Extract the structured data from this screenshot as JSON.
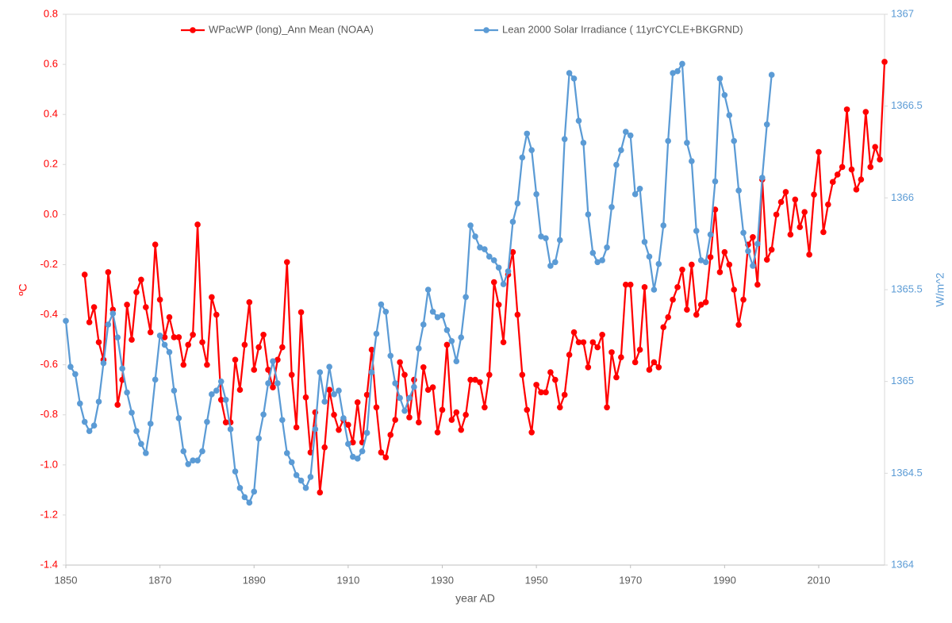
{
  "chart_data": {
    "type": "line",
    "xlabel": "year AD",
    "ylabel": "ºC",
    "y2label": "W/m^2",
    "legend": "top",
    "grid": false,
    "markers": true,
    "xlim": [
      1850,
      2024
    ],
    "xticks": [
      1850,
      1870,
      1890,
      1910,
      1930,
      1950,
      1970,
      1990,
      2010
    ],
    "ylim": [
      -1.4,
      0.8
    ],
    "yticks": [
      -1.4,
      -1.2,
      {
        "value": -1,
        "label": "-1.0"
      },
      -0.8,
      -0.6,
      -0.4,
      -0.2,
      {
        "value": 0,
        "label": "0.0"
      },
      0.2,
      0.4,
      0.6,
      0.8
    ],
    "y2lim": [
      1364,
      1367
    ],
    "y2ticks": [
      1364,
      1364.5,
      1365,
      1365.5,
      1366,
      1366.5,
      1367
    ],
    "x": [
      1850,
      1851,
      1852,
      1853,
      1854,
      1855,
      1856,
      1857,
      1858,
      1859,
      1860,
      1861,
      1862,
      1863,
      1864,
      1865,
      1866,
      1867,
      1868,
      1869,
      1870,
      1871,
      1872,
      1873,
      1874,
      1875,
      1876,
      1877,
      1878,
      1879,
      1880,
      1881,
      1882,
      1883,
      1884,
      1885,
      1886,
      1887,
      1888,
      1889,
      1890,
      1891,
      1892,
      1893,
      1894,
      1895,
      1896,
      1897,
      1898,
      1899,
      1900,
      1901,
      1902,
      1903,
      1904,
      1905,
      1906,
      1907,
      1908,
      1909,
      1910,
      1911,
      1912,
      1913,
      1914,
      1915,
      1916,
      1917,
      1918,
      1919,
      1920,
      1921,
      1922,
      1923,
      1924,
      1925,
      1926,
      1927,
      1928,
      1929,
      1930,
      1931,
      1932,
      1933,
      1934,
      1935,
      1936,
      1937,
      1938,
      1939,
      1940,
      1941,
      1942,
      1943,
      1944,
      1945,
      1946,
      1947,
      1948,
      1949,
      1950,
      1951,
      1952,
      1953,
      1954,
      1955,
      1956,
      1957,
      1958,
      1959,
      1960,
      1961,
      1962,
      1963,
      1964,
      1965,
      1966,
      1967,
      1968,
      1969,
      1970,
      1971,
      1972,
      1973,
      1974,
      1975,
      1976,
      1977,
      1978,
      1979,
      1980,
      1981,
      1982,
      1983,
      1984,
      1985,
      1986,
      1987,
      1988,
      1989,
      1990,
      1991,
      1992,
      1993,
      1994,
      1995,
      1996,
      1997,
      1998,
      1999,
      2000,
      2001,
      2002,
      2003,
      2004,
      2005,
      2006,
      2007,
      2008,
      2009,
      2010,
      2011,
      2012,
      2013,
      2014,
      2015,
      2016,
      2017,
      2018,
      2019,
      2020,
      2021,
      2022,
      2023,
      2024
    ],
    "series": [
      {
        "name": "WPacWP (long)_Ann Mean (NOAA)",
        "color": "#ff0000",
        "axis": "y",
        "values": [
          null,
          null,
          null,
          null,
          -0.24,
          -0.43,
          -0.37,
          -0.51,
          -0.58,
          -0.23,
          -0.38,
          -0.76,
          -0.66,
          -0.36,
          -0.5,
          -0.31,
          -0.26,
          -0.37,
          -0.47,
          -0.12,
          -0.34,
          -0.49,
          -0.41,
          -0.49,
          -0.49,
          -0.6,
          -0.52,
          -0.48,
          -0.04,
          -0.51,
          -0.6,
          -0.33,
          -0.4,
          -0.74,
          -0.83,
          -0.83,
          -0.58,
          -0.7,
          -0.52,
          -0.35,
          -0.62,
          -0.53,
          -0.48,
          -0.62,
          -0.69,
          -0.58,
          -0.53,
          -0.19,
          -0.64,
          -0.85,
          -0.39,
          -0.73,
          -0.95,
          -0.79,
          -1.11,
          -0.93,
          -0.7,
          -0.8,
          -0.86,
          -0.82,
          -0.84,
          -0.91,
          -0.75,
          -0.91,
          -0.72,
          -0.54,
          -0.77,
          -0.95,
          -0.97,
          -0.88,
          -0.82,
          -0.59,
          -0.64,
          -0.81,
          -0.66,
          -0.83,
          -0.61,
          -0.7,
          -0.69,
          -0.87,
          -0.78,
          -0.52,
          -0.82,
          -0.79,
          -0.86,
          -0.8,
          -0.66,
          -0.66,
          -0.67,
          -0.77,
          -0.64,
          -0.27,
          -0.36,
          -0.51,
          -0.24,
          -0.15,
          -0.4,
          -0.64,
          -0.78,
          -0.87,
          -0.68,
          -0.71,
          -0.71,
          -0.63,
          -0.66,
          -0.77,
          -0.72,
          -0.56,
          -0.47,
          -0.51,
          -0.51,
          -0.61,
          -0.51,
          -0.53,
          -0.48,
          -0.77,
          -0.55,
          -0.65,
          -0.57,
          -0.28,
          -0.28,
          -0.59,
          -0.54,
          -0.29,
          -0.62,
          -0.59,
          -0.61,
          -0.45,
          -0.41,
          -0.34,
          -0.29,
          -0.22,
          -0.38,
          -0.2,
          -0.4,
          -0.36,
          -0.35,
          -0.17,
          0.02,
          -0.23,
          -0.15,
          -0.2,
          -0.3,
          -0.44,
          -0.34,
          -0.12,
          -0.09,
          -0.28,
          0.14,
          -0.18,
          -0.14,
          0.0,
          0.05,
          0.09,
          -0.08,
          0.06,
          -0.05,
          0.01,
          -0.16,
          0.08,
          0.25,
          -0.07,
          0.04,
          0.13,
          0.16,
          0.19,
          0.42,
          0.18,
          0.1,
          0.14,
          0.41,
          0.19,
          0.27,
          0.22,
          0.61
        ]
      },
      {
        "name": "Lean 2000 Solar Irradiance ( 11yrCYCLE+BKGRND)",
        "color": "#5b9bd5",
        "axis": "y2",
        "values": [
          1365.33,
          1365.08,
          1365.04,
          1364.88,
          1364.78,
          1364.73,
          1364.76,
          1364.89,
          1365.1,
          1365.31,
          1365.37,
          1365.24,
          1365.07,
          1364.94,
          1364.83,
          1364.73,
          1364.66,
          1364.61,
          1364.77,
          1365.01,
          1365.25,
          1365.2,
          1365.16,
          1364.95,
          1364.8,
          1364.62,
          1364.55,
          1364.57,
          1364.57,
          1364.62,
          1364.78,
          1364.93,
          1364.95,
          1365.0,
          1364.9,
          1364.74,
          1364.51,
          1364.42,
          1364.37,
          1364.34,
          1364.4,
          1364.69,
          1364.82,
          1364.99,
          1365.11,
          1364.99,
          1364.79,
          1364.61,
          1364.56,
          1364.49,
          1364.46,
          1364.42,
          1364.48,
          1364.74,
          1365.05,
          1364.89,
          1365.08,
          1364.93,
          1364.95,
          1364.8,
          1364.66,
          1364.59,
          1364.58,
          1364.62,
          1364.72,
          1365.05,
          1365.26,
          1365.42,
          1365.38,
          1365.14,
          1364.99,
          1364.91,
          1364.84,
          1364.91,
          1364.97,
          1365.18,
          1365.31,
          1365.5,
          1365.38,
          1365.35,
          1365.36,
          1365.28,
          1365.22,
          1365.11,
          1365.24,
          1365.46,
          1365.85,
          1365.79,
          1365.73,
          1365.72,
          1365.68,
          1365.66,
          1365.62,
          1365.53,
          1365.6,
          1365.87,
          1365.97,
          1366.22,
          1366.35,
          1366.26,
          1366.02,
          1365.79,
          1365.78,
          1365.63,
          1365.65,
          1365.77,
          1366.32,
          1366.68,
          1366.65,
          1366.42,
          1366.3,
          1365.91,
          1365.7,
          1365.65,
          1365.66,
          1365.73,
          1365.95,
          1366.18,
          1366.26,
          1366.36,
          1366.34,
          1366.02,
          1366.05,
          1365.76,
          1365.68,
          1365.5,
          1365.64,
          1365.85,
          1366.31,
          1366.68,
          1366.69,
          1366.73,
          1366.3,
          1366.2,
          1365.82,
          1365.66,
          1365.65,
          1365.8,
          1366.09,
          1366.65,
          1366.56,
          1366.45,
          1366.31,
          1366.04,
          1365.81,
          1365.71,
          1365.63,
          1365.75,
          1366.11,
          1366.4,
          1366.67,
          null,
          null,
          null,
          null,
          null,
          null,
          null,
          null,
          null,
          null,
          null,
          null,
          null,
          null,
          null,
          null,
          null,
          null,
          null,
          null,
          null,
          null,
          null,
          null
        ]
      }
    ]
  }
}
